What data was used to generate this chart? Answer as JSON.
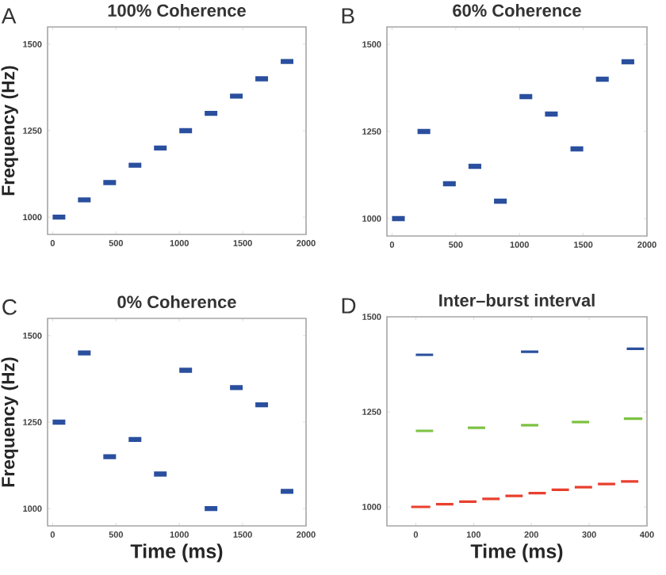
{
  "chart_data": [
    {
      "type": "line",
      "title": "100% Coherence",
      "ylabel": "Frequency (Hz)",
      "annotations": [
        "A"
      ],
      "xlim": [
        -40,
        2000
      ],
      "ylim": [
        950,
        1550
      ],
      "xticks": [
        0,
        500,
        1000,
        1500,
        2000
      ],
      "yticks": [
        1000,
        1250,
        1500
      ],
      "grid": false,
      "marker": "none",
      "series": [
        {
          "color": "#2a4f9e",
          "x": [
            0,
            100,
            null,
            200,
            300,
            null,
            400,
            500,
            null,
            600,
            700,
            null,
            800,
            900,
            null,
            1000,
            1100,
            null,
            1200,
            1300,
            null,
            1400,
            1500,
            null,
            1600,
            1700,
            null,
            1800,
            1900
          ],
          "values": [
            1000,
            1000,
            null,
            1050,
            1050,
            null,
            1100,
            1100,
            null,
            1150,
            1150,
            null,
            1200,
            1200,
            null,
            1250,
            1250,
            null,
            1300,
            1300,
            null,
            1350,
            1350,
            null,
            1400,
            1400,
            null,
            1450,
            1450
          ]
        }
      ]
    },
    {
      "type": "line",
      "title": "60% Coherence",
      "annotations": [
        "B"
      ],
      "xlim": [
        -40,
        2000
      ],
      "ylim": [
        950,
        1550
      ],
      "xticks": [
        0,
        500,
        1000,
        1500,
        2000
      ],
      "yticks": [
        1000,
        1250,
        1500
      ],
      "grid": false,
      "marker": "none",
      "series": [
        {
          "color": "#2a4f9e",
          "x": [
            0,
            100,
            null,
            200,
            300,
            null,
            400,
            500,
            null,
            600,
            700,
            null,
            800,
            900,
            null,
            1000,
            1100,
            null,
            1200,
            1300,
            null,
            1400,
            1500,
            null,
            1600,
            1700,
            null,
            1800,
            1900
          ],
          "values": [
            1000,
            1000,
            null,
            1250,
            1250,
            null,
            1100,
            1100,
            null,
            1150,
            1150,
            null,
            1050,
            1050,
            null,
            1350,
            1350,
            null,
            1300,
            1300,
            null,
            1200,
            1200,
            null,
            1400,
            1400,
            null,
            1450,
            1450
          ]
        }
      ]
    },
    {
      "type": "line",
      "title": "0% Coherence",
      "xlabel": "Time (ms)",
      "ylabel": "Frequency (Hz)",
      "annotations": [
        "C"
      ],
      "xlim": [
        -40,
        2000
      ],
      "ylim": [
        950,
        1550
      ],
      "xticks": [
        0,
        500,
        1000,
        1500,
        2000
      ],
      "yticks": [
        1000,
        1250,
        1500
      ],
      "grid": false,
      "marker": "none",
      "series": [
        {
          "color": "#2a4f9e",
          "x": [
            0,
            100,
            null,
            200,
            300,
            null,
            400,
            500,
            null,
            600,
            700,
            null,
            800,
            900,
            null,
            1000,
            1100,
            null,
            1200,
            1300,
            null,
            1400,
            1500,
            null,
            1600,
            1700,
            null,
            1800,
            1900
          ],
          "values": [
            1250,
            1250,
            null,
            1450,
            1450,
            null,
            1150,
            1150,
            null,
            1200,
            1200,
            null,
            1100,
            1100,
            null,
            1400,
            1400,
            null,
            1000,
            1000,
            null,
            1350,
            1350,
            null,
            1300,
            1300,
            null,
            1050,
            1050
          ]
        }
      ]
    },
    {
      "type": "line",
      "title": "Inter–burst interval",
      "xlabel": "Time (ms)",
      "annotations": [
        "D"
      ],
      "xlim": [
        -50,
        400
      ],
      "ylim": [
        950,
        1500
      ],
      "xticks": [
        0,
        100,
        200,
        300,
        400
      ],
      "yticks": [
        1000,
        1250,
        1500
      ],
      "grid": false,
      "marker": "none",
      "series": [
        {
          "color": "#2a4f9e",
          "x": [
            0,
            30,
            null,
            182,
            212,
            null,
            365,
            395
          ],
          "values": [
            1400,
            1400,
            null,
            1408,
            1408,
            null,
            1416,
            1416
          ]
        },
        {
          "color": "#7dc242",
          "x": [
            0,
            30,
            null,
            90,
            120,
            null,
            182,
            212,
            null,
            270,
            300,
            null,
            360,
            392
          ],
          "values": [
            1200,
            1200,
            null,
            1208,
            1208,
            null,
            1215,
            1215,
            null,
            1223,
            1223,
            null,
            1232,
            1232
          ]
        },
        {
          "color": "#e8402e",
          "x": [
            -8,
            25,
            null,
            35,
            65,
            null,
            75,
            105,
            null,
            115,
            145,
            null,
            155,
            185,
            null,
            195,
            225,
            null,
            235,
            265,
            null,
            275,
            305,
            null,
            315,
            345,
            null,
            355,
            385
          ],
          "values": [
            1000,
            1000,
            null,
            1007,
            1007,
            null,
            1014,
            1014,
            null,
            1021,
            1021,
            null,
            1029,
            1029,
            null,
            1036,
            1036,
            null,
            1045,
            1045,
            null,
            1052,
            1052,
            null,
            1060,
            1060,
            null,
            1067,
            1067
          ]
        }
      ]
    }
  ]
}
